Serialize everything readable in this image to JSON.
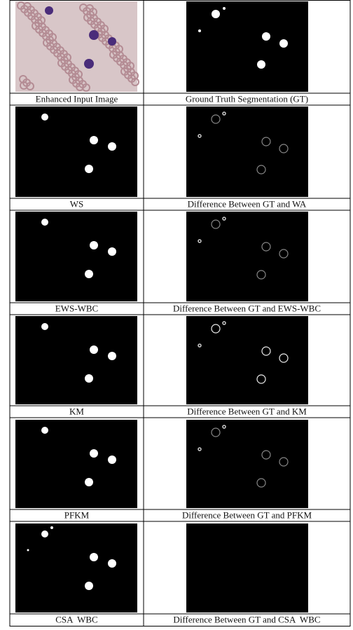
{
  "rows": [
    {
      "left": "Enhanced Input Image",
      "right": "Ground Truth Segmentation (GT)"
    },
    {
      "left": "WS",
      "right": "Difference Between GT and WA"
    },
    {
      "left": "EWS-WBC",
      "right": "Difference Between GT and EWS-WBC"
    },
    {
      "left": "KM",
      "right": "Difference Between GT and KM"
    },
    {
      "left": "PFKM",
      "right": "Difference Between GT and PFKM"
    },
    {
      "left": "CSA  WBC",
      "right": "Difference Between GT and CSA  WBC"
    }
  ]
}
